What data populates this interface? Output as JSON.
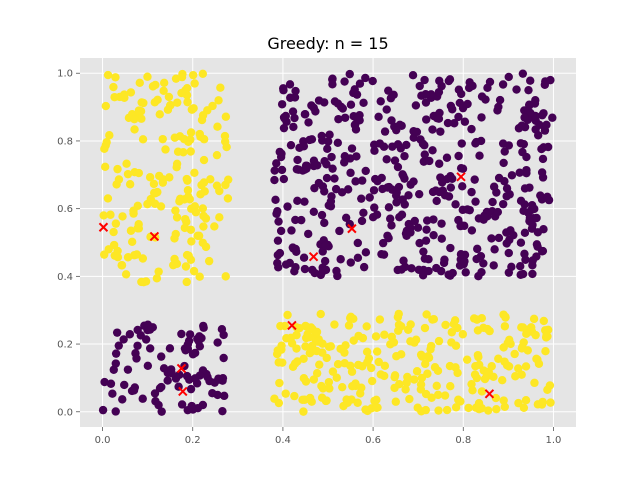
{
  "chart_data": {
    "type": "scatter",
    "title": "Greedy: n = 15",
    "xlabel": "",
    "ylabel": "",
    "xlim": [
      -0.05,
      1.05
    ],
    "ylim": [
      -0.045,
      1.045
    ],
    "xticks": [
      0.0,
      0.2,
      0.4,
      0.6,
      0.8,
      1.0
    ],
    "yticks": [
      0.0,
      0.2,
      0.4,
      0.6,
      0.8,
      1.0
    ],
    "grid": true,
    "style": "ggplot",
    "colors": {
      "background": "#e5e5e5",
      "grid": "#ffffff",
      "class_0": "#440154",
      "class_1": "#fde725",
      "centers": "#ff0000"
    },
    "clusters": [
      {
        "class": 1,
        "x_range": [
          0.0,
          0.28
        ],
        "y_range": [
          0.38,
          1.0
        ],
        "count": 190
      },
      {
        "class": 0,
        "x_range": [
          0.38,
          1.0
        ],
        "y_range": [
          0.4,
          1.0
        ],
        "count": 480
      },
      {
        "class": 0,
        "x_range": [
          0.0,
          0.27
        ],
        "y_range": [
          0.0,
          0.28
        ],
        "count": 95
      },
      {
        "class": 1,
        "x_range": [
          0.38,
          1.0
        ],
        "y_range": [
          0.0,
          0.29
        ],
        "count": 270
      }
    ],
    "centers": [
      {
        "x": 0.002,
        "y": 0.545
      },
      {
        "x": 0.115,
        "y": 0.518
      },
      {
        "x": 0.468,
        "y": 0.458
      },
      {
        "x": 0.553,
        "y": 0.541
      },
      {
        "x": 0.795,
        "y": 0.694
      },
      {
        "x": 0.42,
        "y": 0.255
      },
      {
        "x": 0.175,
        "y": 0.128
      },
      {
        "x": 0.178,
        "y": 0.06
      },
      {
        "x": 0.858,
        "y": 0.053
      }
    ]
  }
}
